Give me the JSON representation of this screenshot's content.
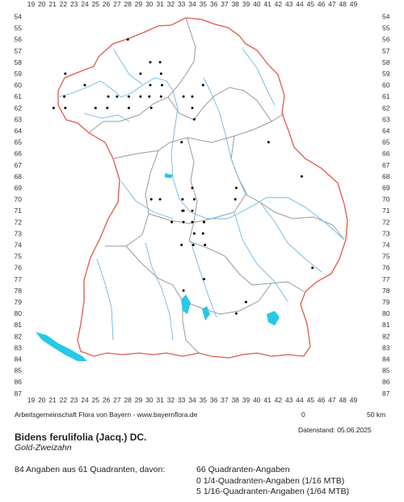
{
  "map": {
    "columns": [
      "19",
      "20",
      "21",
      "22",
      "23",
      "24",
      "25",
      "26",
      "27",
      "28",
      "29",
      "30",
      "31",
      "32",
      "33",
      "34",
      "35",
      "36",
      "37",
      "38",
      "39",
      "40",
      "41",
      "42",
      "43",
      "44",
      "45",
      "46",
      "47",
      "48",
      "49"
    ],
    "rows": [
      "54",
      "55",
      "56",
      "57",
      "58",
      "59",
      "60",
      "61",
      "62",
      "63",
      "64",
      "65",
      "66",
      "67",
      "68",
      "69",
      "70",
      "71",
      "72",
      "73",
      "74",
      "75",
      "76",
      "77",
      "78",
      "79",
      "80",
      "81",
      "82",
      "83",
      "84",
      "85",
      "86",
      "87"
    ],
    "colors": {
      "border": "#e05a4b",
      "districts": "#9a9a9a",
      "rivers": "#6fb6e8",
      "lakes": "#26c9e6",
      "records": "#000000"
    },
    "records": [
      [
        "28",
        "56"
      ],
      [
        "30",
        "58"
      ],
      [
        "29",
        "59"
      ],
      [
        "31",
        "58"
      ],
      [
        "31",
        "59"
      ],
      [
        "22",
        "59"
      ],
      [
        "24",
        "60"
      ],
      [
        "30",
        "60"
      ],
      [
        "31",
        "60"
      ],
      [
        "35",
        "60"
      ],
      [
        "22",
        "61"
      ],
      [
        "26",
        "61"
      ],
      [
        "27",
        "61"
      ],
      [
        "28",
        "61"
      ],
      [
        "29",
        "61"
      ],
      [
        "30",
        "61"
      ],
      [
        "31",
        "61"
      ],
      [
        "33",
        "61"
      ],
      [
        "34",
        "61"
      ],
      [
        "21",
        "62"
      ],
      [
        "22",
        "62"
      ],
      [
        "25",
        "62"
      ],
      [
        "28",
        "62"
      ],
      [
        "30",
        "62"
      ],
      [
        "34",
        "62"
      ],
      [
        "26",
        "62"
      ],
      [
        "34",
        "63"
      ],
      [
        "33",
        "65"
      ],
      [
        "41",
        "65"
      ],
      [
        "44",
        "68"
      ],
      [
        "34",
        "69"
      ],
      [
        "38",
        "69"
      ],
      [
        "30",
        "70"
      ],
      [
        "31",
        "70"
      ],
      [
        "33",
        "70"
      ],
      [
        "34",
        "70"
      ],
      [
        "38",
        "70"
      ],
      [
        "33",
        "71"
      ],
      [
        "33",
        "71"
      ],
      [
        "34",
        "71"
      ],
      [
        "32",
        "72"
      ],
      [
        "33",
        "72"
      ],
      [
        "34",
        "72"
      ],
      [
        "35",
        "72"
      ],
      [
        "34",
        "73"
      ],
      [
        "35",
        "73"
      ],
      [
        "34",
        "74"
      ],
      [
        "35",
        "74"
      ],
      [
        "33",
        "74"
      ],
      [
        "35",
        "77"
      ],
      [
        "33",
        "78"
      ],
      [
        "39",
        "79"
      ],
      [
        "38",
        "80"
      ],
      [
        "45",
        "76"
      ]
    ]
  },
  "credit": "Arbeitsgemeinschaft Flora von Bayern - www.bayernflora.de",
  "scale": {
    "zero": "0",
    "label": "50 km"
  },
  "date_label": "Datenstand: 05.06.2025",
  "species": {
    "scientific": "Bidens ferulifolia (Jacq.) DC.",
    "common": "Gold-Zweizahn"
  },
  "summary": {
    "total": "84 Angaben aus 61 Quadranten, davon:",
    "lines": [
      "66 Quadranten-Angaben",
      "0 1/4-Quadranten-Angaben (1/16 MTB)",
      "5 1/16-Quadranten-Angaben (1/64 MTB)"
    ]
  }
}
